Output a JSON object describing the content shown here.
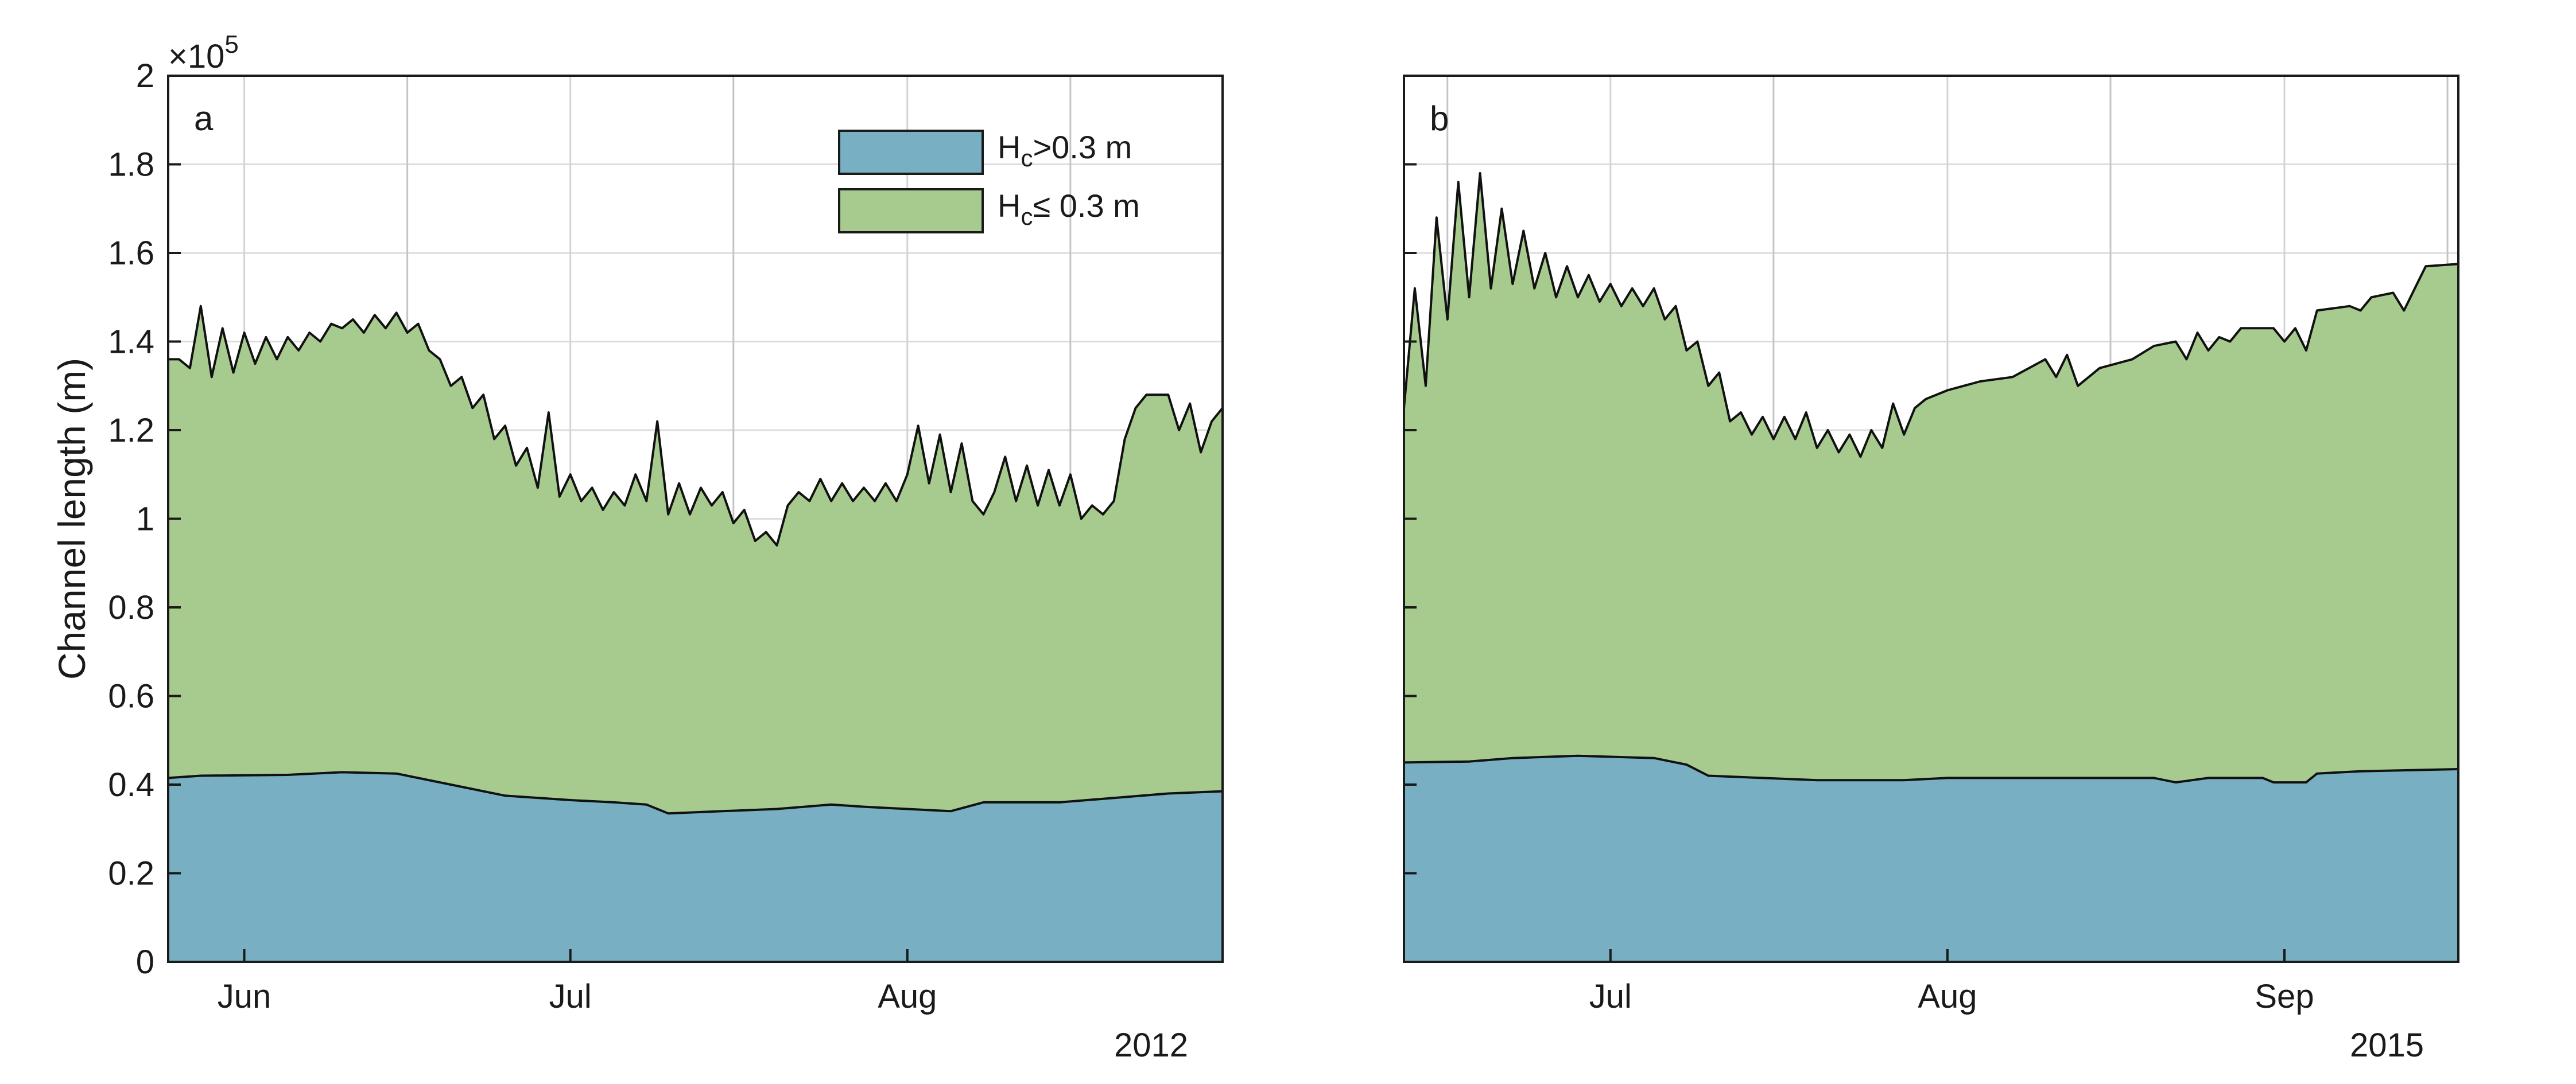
{
  "chart_data": [
    {
      "panel_label": "a",
      "type": "area",
      "stacked": true,
      "ylabel": "Channel length (m)",
      "y_multiplier": "×10",
      "y_multiplier_exponent": "5",
      "ylim": [
        0,
        200000
      ],
      "yticks": [
        0,
        20000,
        40000,
        60000,
        80000,
        100000,
        120000,
        140000,
        160000,
        180000,
        200000
      ],
      "ytick_labels": [
        "0",
        "0.2",
        "0.4",
        "0.6",
        "0.8",
        "1",
        "1.2",
        "1.4",
        "1.6",
        "1.8",
        "2"
      ],
      "xlim": [
        "2012-05-25",
        "2012-08-30"
      ],
      "xticks": [
        {
          "date": "2012-06-01",
          "label": "Jun"
        },
        {
          "date": "2012-07-01",
          "label": "Jul"
        },
        {
          "date": "2012-08-01",
          "label": "Aug"
        }
      ],
      "year_label": "2012",
      "grid": true,
      "legend": {
        "placement": "top-right",
        "entries": [
          {
            "main": "H",
            "sub": "c",
            "rest": ">0.3 m",
            "color": "#78afc3"
          },
          {
            "main": "H",
            "sub": "c",
            "rest": "≤ 0.3 m",
            "color": "#a7ca8f"
          }
        ]
      },
      "series": [
        {
          "key": "deep",
          "color": "#78afc3",
          "points": [
            [
              "2012-05-25",
              41500
            ],
            [
              "2012-05-28",
              42000
            ],
            [
              "2012-06-05",
              42200
            ],
            [
              "2012-06-10",
              42800
            ],
            [
              "2012-06-15",
              42500
            ],
            [
              "2012-06-20",
              40000
            ],
            [
              "2012-06-25",
              37500
            ],
            [
              "2012-07-01",
              36500
            ],
            [
              "2012-07-05",
              36000
            ],
            [
              "2012-07-08",
              35500
            ],
            [
              "2012-07-10",
              33500
            ],
            [
              "2012-07-15",
              34000
            ],
            [
              "2012-07-20",
              34500
            ],
            [
              "2012-07-25",
              35500
            ],
            [
              "2012-07-28",
              35000
            ],
            [
              "2012-08-01",
              34500
            ],
            [
              "2012-08-05",
              34000
            ],
            [
              "2012-08-08",
              36000
            ],
            [
              "2012-08-15",
              36000
            ],
            [
              "2012-08-20",
              37000
            ],
            [
              "2012-08-25",
              38000
            ],
            [
              "2012-08-30",
              38500
            ]
          ]
        },
        {
          "key": "total",
          "color": "#a7ca8f",
          "points": [
            [
              "2012-05-25",
              136000
            ],
            [
              "2012-05-26",
              136000
            ],
            [
              "2012-05-27",
              134000
            ],
            [
              "2012-05-28",
              148000
            ],
            [
              "2012-05-29",
              132000
            ],
            [
              "2012-05-30",
              143000
            ],
            [
              "2012-05-31",
              133000
            ],
            [
              "2012-06-01",
              142000
            ],
            [
              "2012-06-02",
              135000
            ],
            [
              "2012-06-03",
              141000
            ],
            [
              "2012-06-04",
              136000
            ],
            [
              "2012-06-05",
              141000
            ],
            [
              "2012-06-06",
              138000
            ],
            [
              "2012-06-07",
              142000
            ],
            [
              "2012-06-08",
              140000
            ],
            [
              "2012-06-09",
              144000
            ],
            [
              "2012-06-10",
              143000
            ],
            [
              "2012-06-11",
              145000
            ],
            [
              "2012-06-12",
              142000
            ],
            [
              "2012-06-13",
              146000
            ],
            [
              "2012-06-14",
              143000
            ],
            [
              "2012-06-15",
              146500
            ],
            [
              "2012-06-16",
              142000
            ],
            [
              "2012-06-17",
              144000
            ],
            [
              "2012-06-18",
              138000
            ],
            [
              "2012-06-19",
              136000
            ],
            [
              "2012-06-20",
              130000
            ],
            [
              "2012-06-21",
              132000
            ],
            [
              "2012-06-22",
              125000
            ],
            [
              "2012-06-23",
              128000
            ],
            [
              "2012-06-24",
              118000
            ],
            [
              "2012-06-25",
              121000
            ],
            [
              "2012-06-26",
              112000
            ],
            [
              "2012-06-27",
              116000
            ],
            [
              "2012-06-28",
              107000
            ],
            [
              "2012-06-29",
              124000
            ],
            [
              "2012-06-30",
              105000
            ],
            [
              "2012-07-01",
              110000
            ],
            [
              "2012-07-02",
              104000
            ],
            [
              "2012-07-03",
              107000
            ],
            [
              "2012-07-04",
              102000
            ],
            [
              "2012-07-05",
              106000
            ],
            [
              "2012-07-06",
              103000
            ],
            [
              "2012-07-07",
              110000
            ],
            [
              "2012-07-08",
              104000
            ],
            [
              "2012-07-09",
              122000
            ],
            [
              "2012-07-10",
              101000
            ],
            [
              "2012-07-11",
              108000
            ],
            [
              "2012-07-12",
              101000
            ],
            [
              "2012-07-13",
              107000
            ],
            [
              "2012-07-14",
              103000
            ],
            [
              "2012-07-15",
              106000
            ],
            [
              "2012-07-16",
              99000
            ],
            [
              "2012-07-17",
              102000
            ],
            [
              "2012-07-18",
              95000
            ],
            [
              "2012-07-19",
              97000
            ],
            [
              "2012-07-20",
              94000
            ],
            [
              "2012-07-21",
              103000
            ],
            [
              "2012-07-22",
              106000
            ],
            [
              "2012-07-23",
              104000
            ],
            [
              "2012-07-24",
              109000
            ],
            [
              "2012-07-25",
              104000
            ],
            [
              "2012-07-26",
              108000
            ],
            [
              "2012-07-27",
              104000
            ],
            [
              "2012-07-28",
              107000
            ],
            [
              "2012-07-29",
              104000
            ],
            [
              "2012-07-30",
              108000
            ],
            [
              "2012-07-31",
              104000
            ],
            [
              "2012-08-01",
              110000
            ],
            [
              "2012-08-02",
              121000
            ],
            [
              "2012-08-03",
              108000
            ],
            [
              "2012-08-04",
              119000
            ],
            [
              "2012-08-05",
              106000
            ],
            [
              "2012-08-06",
              117000
            ],
            [
              "2012-08-07",
              104000
            ],
            [
              "2012-08-08",
              101000
            ],
            [
              "2012-08-09",
              106000
            ],
            [
              "2012-08-10",
              114000
            ],
            [
              "2012-08-11",
              104000
            ],
            [
              "2012-08-12",
              112000
            ],
            [
              "2012-08-13",
              103000
            ],
            [
              "2012-08-14",
              111000
            ],
            [
              "2012-08-15",
              103000
            ],
            [
              "2012-08-16",
              110000
            ],
            [
              "2012-08-17",
              100000
            ],
            [
              "2012-08-18",
              103000
            ],
            [
              "2012-08-19",
              101000
            ],
            [
              "2012-08-20",
              104000
            ],
            [
              "2012-08-21",
              118000
            ],
            [
              "2012-08-22",
              125000
            ],
            [
              "2012-08-23",
              128000
            ],
            [
              "2012-08-24",
              128000
            ],
            [
              "2012-08-25",
              128000
            ],
            [
              "2012-08-26",
              120000
            ],
            [
              "2012-08-27",
              126000
            ],
            [
              "2012-08-28",
              115000
            ],
            [
              "2012-08-29",
              122000
            ],
            [
              "2012-08-30",
              125000
            ]
          ]
        }
      ]
    },
    {
      "panel_label": "b",
      "type": "area",
      "stacked": true,
      "ylim": [
        0,
        200000
      ],
      "yticks": [
        0,
        20000,
        40000,
        60000,
        80000,
        100000,
        120000,
        140000,
        160000,
        180000,
        200000
      ],
      "xlim": [
        "2015-06-12",
        "2015-09-17"
      ],
      "xticks": [
        {
          "date": "2015-07-01",
          "label": "Jul"
        },
        {
          "date": "2015-08-01",
          "label": "Aug"
        },
        {
          "date": "2015-09-01",
          "label": "Sep"
        }
      ],
      "year_label": "2015",
      "grid": true,
      "series": [
        {
          "key": "deep",
          "color": "#78afc3",
          "points": [
            [
              "2015-06-12",
              45000
            ],
            [
              "2015-06-18",
              45200
            ],
            [
              "2015-06-22",
              46000
            ],
            [
              "2015-06-28",
              46500
            ],
            [
              "2015-07-05",
              46000
            ],
            [
              "2015-07-08",
              44500
            ],
            [
              "2015-07-10",
              42000
            ],
            [
              "2015-07-15",
              41500
            ],
            [
              "2015-07-20",
              41000
            ],
            [
              "2015-07-28",
              41000
            ],
            [
              "2015-08-01",
              41500
            ],
            [
              "2015-08-10",
              41500
            ],
            [
              "2015-08-20",
              41500
            ],
            [
              "2015-08-22",
              40500
            ],
            [
              "2015-08-25",
              41500
            ],
            [
              "2015-08-30",
              41500
            ],
            [
              "2015-08-31",
              40500
            ],
            [
              "2015-09-03",
              40500
            ],
            [
              "2015-09-04",
              42500
            ],
            [
              "2015-09-08",
              43000
            ],
            [
              "2015-09-17",
              43500
            ]
          ]
        },
        {
          "key": "total",
          "color": "#a7ca8f",
          "points": [
            [
              "2015-06-12",
              125000
            ],
            [
              "2015-06-13",
              152000
            ],
            [
              "2015-06-14",
              130000
            ],
            [
              "2015-06-15",
              168000
            ],
            [
              "2015-06-16",
              145000
            ],
            [
              "2015-06-17",
              176000
            ],
            [
              "2015-06-18",
              150000
            ],
            [
              "2015-06-19",
              178000
            ],
            [
              "2015-06-20",
              152000
            ],
            [
              "2015-06-21",
              170000
            ],
            [
              "2015-06-22",
              153000
            ],
            [
              "2015-06-23",
              165000
            ],
            [
              "2015-06-24",
              152000
            ],
            [
              "2015-06-25",
              160000
            ],
            [
              "2015-06-26",
              150000
            ],
            [
              "2015-06-27",
              157000
            ],
            [
              "2015-06-28",
              150000
            ],
            [
              "2015-06-29",
              155000
            ],
            [
              "2015-06-30",
              149000
            ],
            [
              "2015-07-01",
              153000
            ],
            [
              "2015-07-02",
              148000
            ],
            [
              "2015-07-03",
              152000
            ],
            [
              "2015-07-04",
              148000
            ],
            [
              "2015-07-05",
              152000
            ],
            [
              "2015-07-06",
              145000
            ],
            [
              "2015-07-07",
              148000
            ],
            [
              "2015-07-08",
              138000
            ],
            [
              "2015-07-09",
              140000
            ],
            [
              "2015-07-10",
              130000
            ],
            [
              "2015-07-11",
              133000
            ],
            [
              "2015-07-12",
              122000
            ],
            [
              "2015-07-13",
              124000
            ],
            [
              "2015-07-14",
              119000
            ],
            [
              "2015-07-15",
              123000
            ],
            [
              "2015-07-16",
              118000
            ],
            [
              "2015-07-17",
              123000
            ],
            [
              "2015-07-18",
              118000
            ],
            [
              "2015-07-19",
              124000
            ],
            [
              "2015-07-20",
              116000
            ],
            [
              "2015-07-21",
              120000
            ],
            [
              "2015-07-22",
              115000
            ],
            [
              "2015-07-23",
              119000
            ],
            [
              "2015-07-24",
              114000
            ],
            [
              "2015-07-25",
              120000
            ],
            [
              "2015-07-26",
              116000
            ],
            [
              "2015-07-27",
              126000
            ],
            [
              "2015-07-28",
              119000
            ],
            [
              "2015-07-29",
              125000
            ],
            [
              "2015-07-30",
              127000
            ],
            [
              "2015-08-01",
              129000
            ],
            [
              "2015-08-04",
              131000
            ],
            [
              "2015-08-07",
              132000
            ],
            [
              "2015-08-10",
              136000
            ],
            [
              "2015-08-11",
              132000
            ],
            [
              "2015-08-12",
              137000
            ],
            [
              "2015-08-13",
              130000
            ],
            [
              "2015-08-15",
              134000
            ],
            [
              "2015-08-18",
              136000
            ],
            [
              "2015-08-20",
              139000
            ],
            [
              "2015-08-22",
              140000
            ],
            [
              "2015-08-23",
              136000
            ],
            [
              "2015-08-24",
              142000
            ],
            [
              "2015-08-25",
              138000
            ],
            [
              "2015-08-26",
              141000
            ],
            [
              "2015-08-27",
              140000
            ],
            [
              "2015-08-28",
              143000
            ],
            [
              "2015-08-31",
              143000
            ],
            [
              "2015-09-01",
              140000
            ],
            [
              "2015-09-02",
              143000
            ],
            [
              "2015-09-03",
              138000
            ],
            [
              "2015-09-04",
              147000
            ],
            [
              "2015-09-07",
              148000
            ],
            [
              "2015-09-08",
              147000
            ],
            [
              "2015-09-09",
              150000
            ],
            [
              "2015-09-11",
              151000
            ],
            [
              "2015-09-12",
              147000
            ],
            [
              "2015-09-13",
              152000
            ],
            [
              "2015-09-14",
              157000
            ],
            [
              "2015-09-17",
              157500
            ]
          ]
        }
      ]
    }
  ]
}
